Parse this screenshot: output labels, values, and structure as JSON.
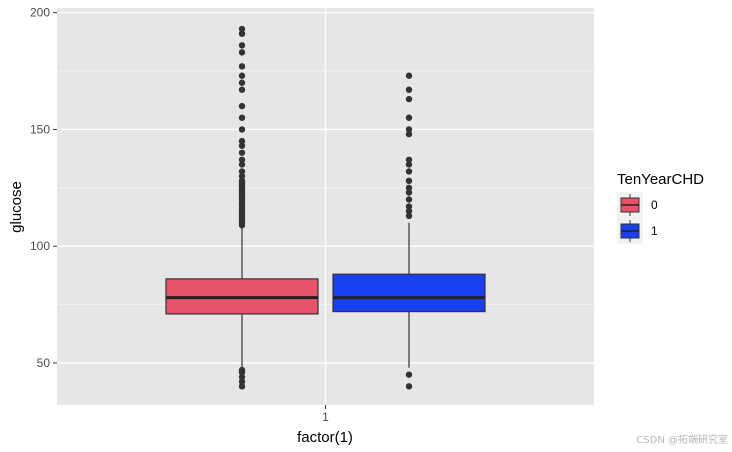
{
  "chart_data": {
    "type": "boxplot",
    "xlabel": "factor(1)",
    "ylabel": "glucose",
    "categories": [
      "1"
    ],
    "ylim": [
      32,
      202
    ],
    "y_ticks": [
      50,
      100,
      150,
      200
    ],
    "grid": true,
    "legend": {
      "title": "TenYearCHD",
      "position": "right"
    },
    "series": [
      {
        "name": "0",
        "color": "#E8536B",
        "q1": 71,
        "median": 78,
        "q3": 86,
        "whisker_low": 48,
        "whisker_high": 108,
        "outliers": [
          40,
          42,
          44,
          46,
          47,
          109,
          110,
          111,
          112,
          113,
          114,
          115,
          116,
          117,
          118,
          119,
          120,
          121,
          122,
          123,
          124,
          125,
          126,
          127,
          128,
          130,
          132,
          135,
          137,
          140,
          143,
          145,
          150,
          155,
          160,
          167,
          170,
          173,
          177,
          183,
          186,
          191,
          193
        ]
      },
      {
        "name": "1",
        "color": "#1A3FF0",
        "q1": 72,
        "median": 78,
        "q3": 88,
        "whisker_low": 48,
        "whisker_high": 110,
        "outliers": [
          40,
          45,
          113,
          115,
          117,
          120,
          123,
          125,
          128,
          132,
          135,
          137,
          148,
          150,
          155,
          163,
          167,
          173
        ]
      }
    ]
  },
  "watermark": "CSDN @拓端研究室"
}
